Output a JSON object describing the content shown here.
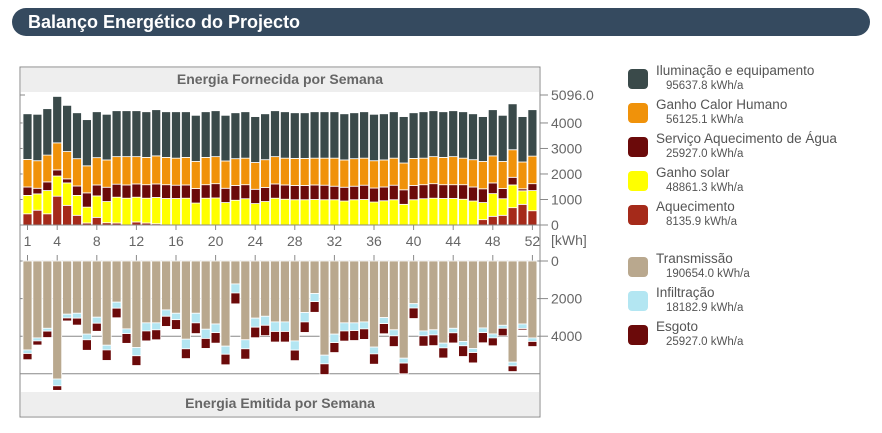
{
  "header": {
    "title": "Balanço Energético do Projecto"
  },
  "chart_data": [
    {
      "type": "bar",
      "stacked": true,
      "title": "Energia Fornecida por Semana",
      "unit": "[kWh]",
      "ylim": [
        0,
        5096.0
      ],
      "yticks": [
        "0",
        "1000",
        "2000",
        "3000",
        "4000",
        "5096.0"
      ],
      "xticks": [
        "1",
        "4",
        "8",
        "12",
        "16",
        "20",
        "24",
        "28",
        "32",
        "36",
        "40",
        "44",
        "48",
        "52"
      ],
      "grid": false,
      "x": [
        1,
        2,
        3,
        4,
        5,
        6,
        7,
        8,
        9,
        10,
        11,
        12,
        13,
        14,
        15,
        16,
        17,
        18,
        19,
        20,
        21,
        22,
        23,
        24,
        25,
        26,
        27,
        28,
        29,
        30,
        31,
        32,
        33,
        34,
        35,
        36,
        37,
        38,
        39,
        40,
        41,
        42,
        43,
        44,
        45,
        46,
        47,
        48,
        49,
        50,
        51,
        52
      ],
      "series": [
        {
          "name": "Aquecimento",
          "total": "8135.9 kWh/a",
          "color": "#a52a1a",
          "values": [
            440,
            580,
            440,
            1130,
            770,
            380,
            80,
            300,
            90,
            80,
            0,
            120,
            80,
            50,
            0,
            0,
            0,
            0,
            0,
            0,
            0,
            0,
            0,
            0,
            0,
            0,
            0,
            0,
            0,
            0,
            0,
            0,
            0,
            0,
            0,
            0,
            0,
            0,
            0,
            0,
            0,
            0,
            0,
            0,
            0,
            0,
            210,
            340,
            380,
            680,
            810,
            560
          ]
        },
        {
          "name": "Ganho solar",
          "total": "48861.3 kWh/a",
          "color": "#ffff00",
          "values": [
            720,
            640,
            910,
            790,
            880,
            780,
            620,
            840,
            830,
            1010,
            1050,
            970,
            970,
            1030,
            1040,
            1040,
            1050,
            860,
            1050,
            1060,
            880,
            970,
            1030,
            840,
            920,
            1050,
            1010,
            990,
            990,
            1000,
            990,
            990,
            940,
            990,
            1000,
            900,
            950,
            990,
            810,
            990,
            1030,
            1050,
            1040,
            1040,
            1010,
            940,
            670,
            890,
            650,
            890,
            530,
            790
          ]
        },
        {
          "name": "Serviço Aquecimento de Água",
          "total": "25927.0 kWh/a",
          "color": "#6b0a0a",
          "values": [
            330,
            220,
            340,
            240,
            160,
            370,
            560,
            430,
            560,
            510,
            520,
            520,
            530,
            530,
            540,
            520,
            520,
            570,
            530,
            560,
            560,
            580,
            550,
            560,
            550,
            560,
            560,
            560,
            560,
            570,
            570,
            530,
            540,
            530,
            560,
            550,
            540,
            570,
            570,
            560,
            550,
            570,
            540,
            540,
            570,
            550,
            540,
            420,
            400,
            300,
            80,
            270
          ]
        },
        {
          "name": "Ganho Calor Humano",
          "total": "56125.1 kWh/a",
          "color": "#f0920a",
          "values": [
            1080,
            1080,
            1050,
            1060,
            1070,
            1070,
            1060,
            1070,
            1070,
            1080,
            1110,
            1070,
            1070,
            1100,
            1070,
            1060,
            1080,
            1060,
            1070,
            1060,
            1070,
            1050,
            1040,
            1050,
            1090,
            1070,
            1050,
            1060,
            1060,
            1050,
            1060,
            1100,
            1070,
            1080,
            1060,
            1070,
            1060,
            1060,
            1050,
            1060,
            1040,
            1060,
            1070,
            1100,
            1040,
            1070,
            1070,
            1060,
            1060,
            1080,
            1050,
            1080
          ]
        },
        {
          "name": "Iluminação e equipamento",
          "total": "95637.8 kWh/a",
          "color": "#3a4a4a",
          "values": [
            1790,
            1820,
            1820,
            1820,
            1810,
            1800,
            1810,
            1800,
            1790,
            1800,
            1800,
            1800,
            1790,
            1810,
            1790,
            1820,
            1790,
            1810,
            1790,
            1800,
            1790,
            1800,
            1820,
            1800,
            1800,
            1800,
            1820,
            1790,
            1790,
            1820,
            1820,
            1820,
            1810,
            1800,
            1820,
            1820,
            1810,
            1820,
            1820,
            1790,
            1820,
            1800,
            1790,
            1800,
            1820,
            1800,
            1760,
            1810,
            1810,
            1800,
            1780,
            1820
          ]
        }
      ]
    },
    {
      "type": "bar",
      "stacked": true,
      "title": "Energia Emitida por Semana",
      "ylim": [
        0,
        6000
      ],
      "inverted": true,
      "yticks": [
        "0",
        "2000",
        "4000"
      ],
      "grid": true,
      "x": [
        1,
        2,
        3,
        4,
        5,
        6,
        7,
        8,
        9,
        10,
        11,
        12,
        13,
        14,
        15,
        16,
        17,
        18,
        19,
        20,
        21,
        22,
        23,
        24,
        25,
        26,
        27,
        28,
        29,
        30,
        31,
        32,
        33,
        34,
        35,
        36,
        37,
        38,
        39,
        40,
        41,
        42,
        43,
        44,
        45,
        46,
        47,
        48,
        49,
        50,
        51,
        52
      ],
      "series": [
        {
          "name": "Transmissão",
          "total": "190654.0 kWh/a",
          "color": "#b9a88e",
          "values": [
            4730,
            4090,
            3580,
            6280,
            2830,
            2780,
            3890,
            2990,
            4480,
            2190,
            3610,
            4600,
            3290,
            3290,
            2600,
            2780,
            4160,
            2780,
            3630,
            3350,
            4530,
            1220,
            4190,
            3040,
            2940,
            3240,
            3240,
            4250,
            2740,
            1730,
            5010,
            3890,
            3290,
            3290,
            3240,
            4580,
            3010,
            3660,
            5170,
            2270,
            3720,
            3660,
            4370,
            3580,
            4280,
            4650,
            3560,
            3880,
            3420,
            5380,
            3350,
            4090
          ]
        },
        {
          "name": "Infiltração",
          "total": "18182.9 kWh/a",
          "color": "#b3e6f2",
          "values": [
            190,
            160,
            150,
            360,
            200,
            260,
            300,
            320,
            250,
            320,
            250,
            440,
            430,
            370,
            340,
            340,
            510,
            510,
            490,
            460,
            430,
            480,
            480,
            480,
            480,
            510,
            510,
            490,
            500,
            430,
            460,
            450,
            430,
            410,
            370,
            360,
            320,
            320,
            260,
            230,
            260,
            270,
            250,
            240,
            230,
            220,
            250,
            210,
            160,
            200,
            240,
            190
          ]
        },
        {
          "name": "Esgoto",
          "total": "25927.0 kWh/a",
          "color": "#6b0a0a",
          "values": [
            330,
            220,
            340,
            240,
            160,
            370,
            560,
            430,
            560,
            510,
            520,
            520,
            530,
            530,
            540,
            520,
            520,
            570,
            530,
            560,
            560,
            580,
            550,
            560,
            550,
            560,
            560,
            560,
            560,
            570,
            570,
            530,
            540,
            530,
            560,
            550,
            540,
            570,
            570,
            560,
            550,
            570,
            540,
            540,
            570,
            550,
            540,
            420,
            400,
            300,
            80,
            270
          ]
        }
      ]
    }
  ]
}
